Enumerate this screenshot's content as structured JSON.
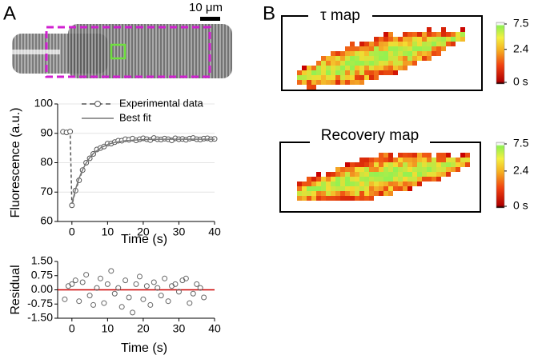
{
  "panels": [
    "A",
    "B"
  ],
  "scale_bar": "10 μm",
  "chart_data": [
    {
      "type": "line",
      "xlabel": "Time (s)",
      "ylabel": "Fluorescence (a.u.)",
      "xlim": [
        -4,
        40
      ],
      "ylim": [
        60,
        100
      ],
      "xticks": [
        0,
        10,
        20,
        30,
        40
      ],
      "yticks": [
        60,
        70,
        80,
        90,
        100
      ],
      "grid": true,
      "series": [
        {
          "name": "Experimental data",
          "color": "#555555",
          "linestyle": "dashed",
          "marker": "circle",
          "x": [
            -2.5,
            -1.5,
            -0.5,
            0,
            1,
            2,
            3,
            4,
            5,
            6,
            7,
            8,
            9,
            10,
            11,
            12,
            13,
            14,
            15,
            16,
            17,
            18,
            19,
            20,
            21,
            22,
            23,
            24,
            25,
            26,
            27,
            28,
            29,
            30,
            31,
            32,
            33,
            34,
            35,
            36,
            37,
            38,
            39,
            40
          ],
          "values": [
            90.5,
            90.3,
            90.6,
            65.5,
            70.5,
            74,
            77.5,
            80,
            81.5,
            83,
            84.5,
            85,
            85.5,
            86.5,
            86.5,
            87,
            87.5,
            87.5,
            88,
            87.8,
            88.2,
            87.6,
            88,
            88.3,
            88,
            87.7,
            88.4,
            88,
            87.9,
            88.2,
            88,
            87.6,
            88.3,
            88,
            88.1,
            87.8,
            88.2,
            88.4,
            88,
            87.9,
            88.2,
            88.3,
            88,
            88.1
          ]
        },
        {
          "name": "Best fit",
          "color": "#777777",
          "linestyle": "solid",
          "x": [
            0,
            1,
            2,
            3,
            4,
            5,
            6,
            8,
            10,
            12,
            15,
            20,
            25,
            30,
            35,
            40
          ],
          "values": [
            66,
            70.9,
            74.7,
            77.6,
            79.9,
            81.7,
            83.1,
            85.0,
            86.2,
            86.9,
            87.5,
            87.9,
            88.0,
            88,
            88,
            88
          ]
        }
      ]
    },
    {
      "type": "scatter",
      "xlabel": "Time (s)",
      "ylabel": "Residual",
      "xlim": [
        -4,
        40
      ],
      "ylim": [
        -1.5,
        1.5
      ],
      "xticks": [
        0,
        10,
        20,
        30,
        40
      ],
      "yticks": [
        {
          "value": -1.5,
          "label": "-1.50"
        },
        {
          "value": -0.75,
          "label": "-0.75"
        },
        {
          "value": 0,
          "label": "0.00"
        },
        {
          "value": 0.75,
          "label": "0.75"
        },
        {
          "value": 1.5,
          "label": "1.50"
        }
      ],
      "reference_line": 0,
      "reference_color": "#cc0000",
      "color": "#666666",
      "x": [
        -2,
        -1,
        0,
        1,
        2,
        3,
        4,
        5,
        6,
        7,
        8,
        9,
        10,
        11,
        12,
        13,
        14,
        15,
        16,
        17,
        18,
        19,
        20,
        21,
        22,
        23,
        24,
        25,
        26,
        27,
        28,
        29,
        30,
        31,
        32,
        33,
        34,
        35,
        36,
        37
      ],
      "values": [
        -0.5,
        0.2,
        0.3,
        0.5,
        -0.6,
        0.4,
        0.8,
        -0.3,
        -0.8,
        0.1,
        0.6,
        -0.7,
        0.3,
        1.0,
        -0.2,
        0.1,
        -0.9,
        0.5,
        -0.4,
        -1.2,
        0.3,
        0.7,
        -0.5,
        0.2,
        -0.8,
        0.4,
        0.1,
        -0.3,
        0.6,
        -0.6,
        0.2,
        0.3,
        -0.1,
        0.5,
        0.6,
        -0.7,
        -0.2,
        0.3,
        0.1,
        -0.4
      ]
    },
    {
      "type": "heatmap",
      "title": "τ map",
      "clim": [
        0,
        7.5
      ],
      "colorbar_scale": "sqrt",
      "cticks": [
        {
          "value": 0,
          "label": "0 s"
        },
        2.4,
        7.5
      ]
    },
    {
      "type": "heatmap",
      "title": "Recovery map",
      "clim": [
        0,
        7.5
      ],
      "colorbar_scale": "sqrt",
      "cticks": [
        {
          "value": 0,
          "label": "0 s"
        },
        2.4,
        7.5
      ]
    }
  ]
}
